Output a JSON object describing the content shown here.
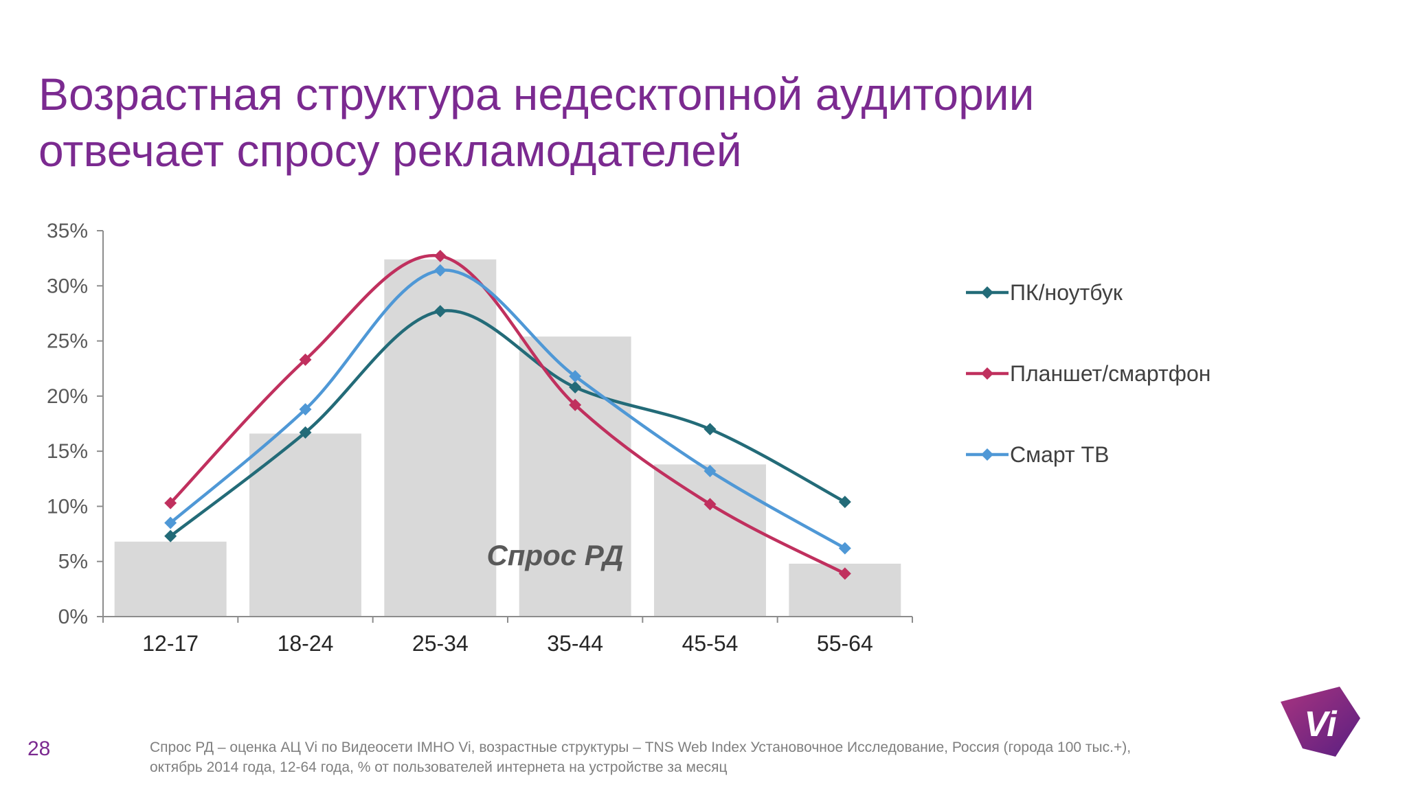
{
  "slide": {
    "title_line1": "Возрастная структура недесктопной аудитории",
    "title_line2": "отвечает спросу рекламодателей",
    "page_number": "28",
    "footnote_line1": "Спрос РД – оценка АЦ Vi по Видеосети IMHO Vi, возрастные структуры – TNS Web Index Установочное Исследование, Россия  (города 100 тыс.+),",
    "footnote_line2": "октябрь 2014 года, 12-64 года, % от пользователей интернета на устройстве за месяц",
    "logo_text": "Vi",
    "brand_color": "#7b2a90"
  },
  "chart_data": {
    "type": "bar",
    "title": "",
    "xlabel": "",
    "ylabel": "",
    "categories": [
      "12-17",
      "18-24",
      "25-34",
      "35-44",
      "45-54",
      "55-64"
    ],
    "y_ticks": [
      "0%",
      "5%",
      "10%",
      "15%",
      "20%",
      "25%",
      "30%",
      "35%"
    ],
    "ylim": [
      0,
      35
    ],
    "grid": false,
    "legend_position": "right",
    "bars": {
      "name": "Спрос РД",
      "label": "Спрос РД",
      "color": "#d9d9d9",
      "values": [
        6.8,
        16.6,
        32.4,
        25.4,
        13.8,
        4.8
      ]
    },
    "series": [
      {
        "name": "ПК/ноутбук",
        "type": "line",
        "color": "#236b78",
        "values": [
          7.3,
          16.7,
          27.7,
          20.8,
          17.0,
          10.4
        ]
      },
      {
        "name": "Планшет/смартфон",
        "type": "line",
        "color": "#c0305e",
        "values": [
          10.3,
          23.3,
          32.7,
          19.2,
          10.2,
          3.9
        ]
      },
      {
        "name": "Смарт ТВ",
        "type": "line",
        "color": "#4f98d6",
        "values": [
          8.5,
          18.8,
          31.4,
          21.8,
          13.2,
          6.2
        ]
      }
    ]
  }
}
